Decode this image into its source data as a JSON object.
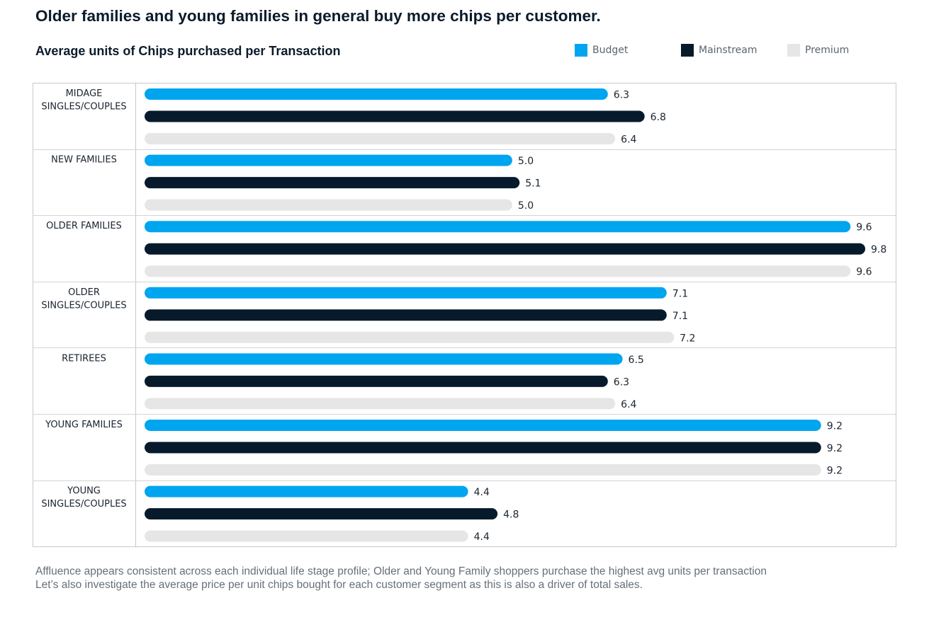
{
  "headline": "Older families and young families in general buy more chips per customer.",
  "chart_data": {
    "type": "bar",
    "orientation": "horizontal",
    "title": "Average units of Chips purchased per Transaction",
    "xlabel": "",
    "ylabel": "",
    "xlim": [
      0,
      10
    ],
    "grid": false,
    "legend_placement": "top-right",
    "categories": [
      "MIDAGE SINGLES/COUPLES",
      "NEW FAMILIES",
      "OLDER FAMILIES",
      "OLDER SINGLES/COUPLES",
      "RETIREES",
      "YOUNG FAMILIES",
      "YOUNG SINGLES/COUPLES"
    ],
    "category_lines": [
      [
        "MIDAGE",
        "SINGLES/COUPLES"
      ],
      [
        "NEW FAMILIES"
      ],
      [
        "OLDER FAMILIES"
      ],
      [
        "OLDER",
        "SINGLES/COUPLES"
      ],
      [
        "RETIREES"
      ],
      [
        "YOUNG FAMILIES"
      ],
      [
        "YOUNG",
        "SINGLES/COUPLES"
      ]
    ],
    "series": [
      {
        "name": "Budget",
        "color": "#00a5ef",
        "values": [
          6.3,
          5.0,
          9.6,
          7.1,
          6.5,
          9.2,
          4.4
        ],
        "labels": [
          "6.3",
          "5.0",
          "9.6",
          "7.1",
          "6.5",
          "9.2",
          "4.4"
        ]
      },
      {
        "name": "Mainstream",
        "color": "#071a2b",
        "values": [
          6.8,
          5.1,
          9.8,
          7.1,
          6.3,
          9.2,
          4.8
        ],
        "labels": [
          "6.8",
          "5.1",
          "9.8",
          "7.1",
          "6.3",
          "9.2",
          "4.8"
        ]
      },
      {
        "name": "Premium",
        "color": "#e6e6e6",
        "values": [
          6.4,
          5.0,
          9.6,
          7.2,
          6.4,
          9.2,
          4.4
        ],
        "labels": [
          "6.4",
          "5.0",
          "9.6",
          "7.2",
          "6.4",
          "9.2",
          "4.4"
        ]
      }
    ]
  },
  "footnotes": [
    "Affluence appears consistent across each individual life stage profile; Older and Young Family shoppers purchase the highest avg units per transaction",
    "Let’s also investigate the average price per unit chips bought for each customer segment as this is also a driver of total sales."
  ]
}
